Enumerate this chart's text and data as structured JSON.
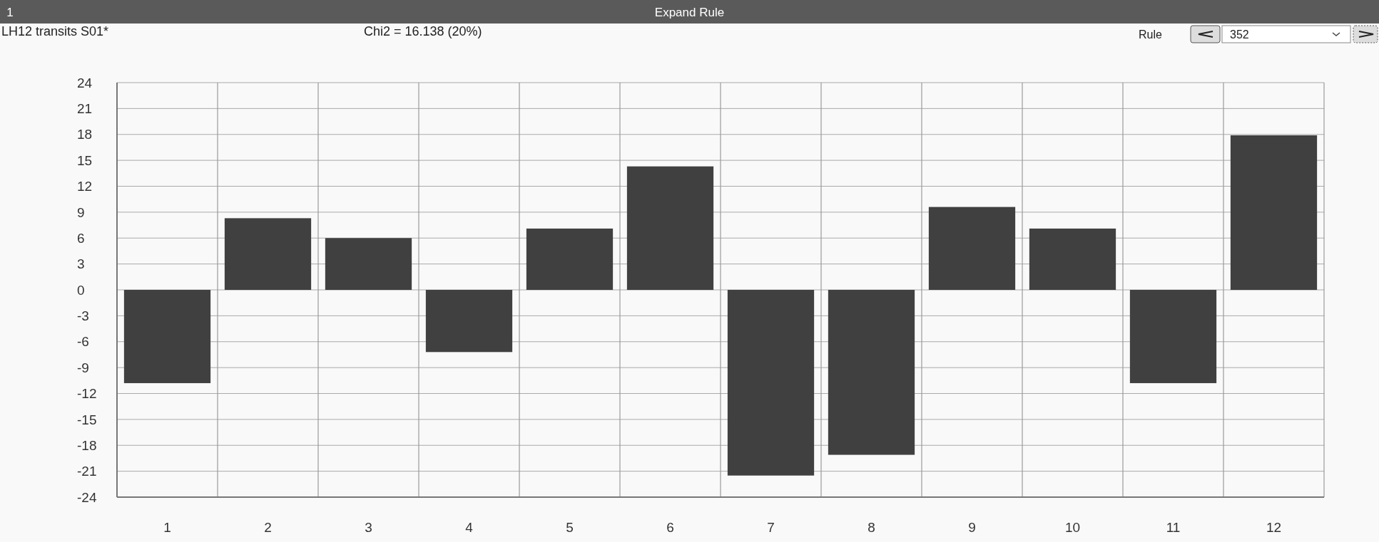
{
  "chart_data": {
    "type": "bar",
    "title": "LH12 transits S01*",
    "subtitle": "Chi2 = 16.138 (20%)",
    "annotations": [
      "1",
      "Expand Rule",
      "Rule",
      "352"
    ],
    "categories": [
      "1",
      "2",
      "3",
      "4",
      "5",
      "6",
      "7",
      "8",
      "9",
      "10",
      "11",
      "12"
    ],
    "values": [
      -10.8,
      8.3,
      6.0,
      -7.2,
      7.1,
      14.3,
      -21.5,
      -19.1,
      9.6,
      7.1,
      -10.8,
      17.9
    ],
    "color": "#404040",
    "ylim": [
      -24,
      24
    ],
    "yticks": [
      -24,
      -21,
      -18,
      -15,
      -12,
      -9,
      -6,
      -3,
      0,
      3,
      6,
      9,
      12,
      15,
      18,
      21,
      24
    ],
    "grid": true
  }
}
